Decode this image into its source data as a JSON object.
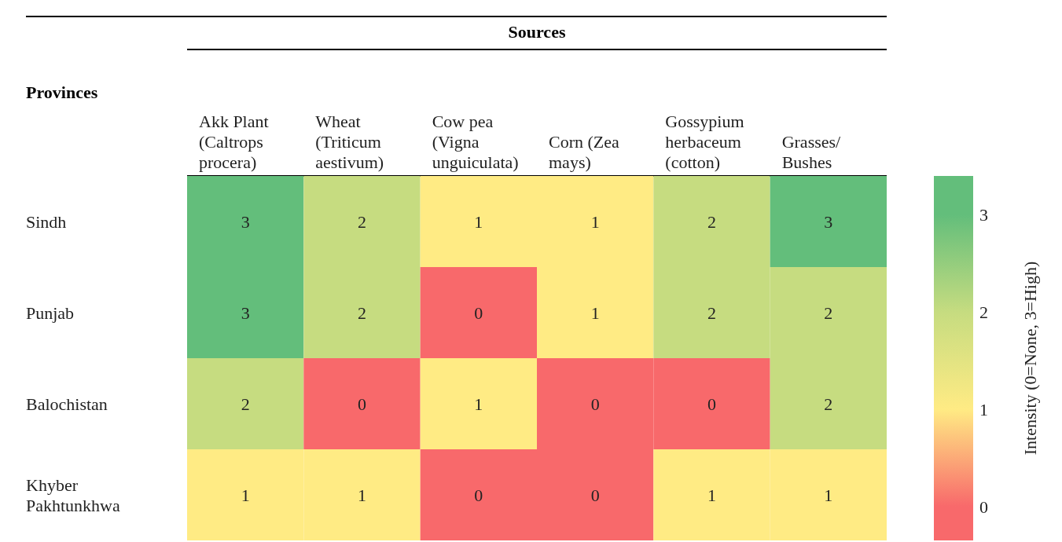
{
  "chart_data": {
    "type": "heatmap",
    "title": "Sources",
    "ylabel": "Provinces",
    "clabel": "Intensity (0=None, 3=High)",
    "categories": [
      "Akk Plant (Caltrops procera)",
      "Wheat (Triticum aestivum)",
      "Cow pea (Vigna unguiculata)",
      "Corn (Zea mays)",
      "Gossypium herbaceum (cotton)",
      "Grasses/ Bushes"
    ],
    "y_categories": [
      "Sindh",
      "Punjab",
      "Balochistan",
      "Khyber Pakhtunkhwa"
    ],
    "cells": [
      [
        3,
        2,
        1,
        1,
        2,
        3
      ],
      [
        3,
        2,
        0,
        1,
        2,
        2
      ],
      [
        2,
        0,
        1,
        0,
        0,
        2
      ],
      [
        1,
        1,
        0,
        0,
        1,
        1
      ]
    ],
    "data_labels": true,
    "clim": [
      -0.35,
      3.4
    ],
    "cticks": [
      0,
      1,
      2,
      3
    ]
  }
}
